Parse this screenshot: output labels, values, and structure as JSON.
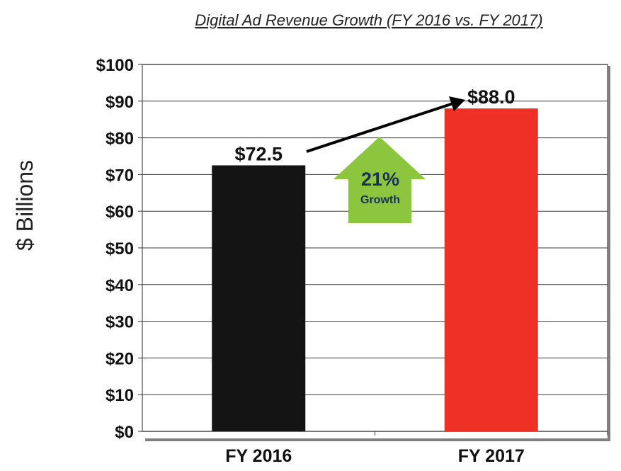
{
  "chart_data": {
    "type": "bar",
    "title": "Digital Ad Revenue Growth (FY 2016 vs. FY 2017)",
    "xlabel": "",
    "ylabel": "$ Billions",
    "categories": [
      "FY 2016",
      "FY 2017"
    ],
    "values": [
      72.5,
      88.0
    ],
    "data_labels": [
      "$72.5",
      "$88.0"
    ],
    "ylim": [
      0,
      100
    ],
    "y_ticks": [
      0,
      10,
      20,
      30,
      40,
      50,
      60,
      70,
      80,
      90,
      100
    ],
    "y_tick_labels": [
      "$0",
      "$10",
      "$20",
      "$30",
      "$40",
      "$50",
      "$60",
      "$70",
      "$80",
      "$90",
      "$100"
    ],
    "grid": true,
    "bar_colors": [
      "#141414",
      "#ee3124"
    ],
    "annotation": {
      "percent": "21%",
      "text": "Growth",
      "arrow_color": "#8cc63f",
      "text_color": "#1b2f5b"
    }
  }
}
